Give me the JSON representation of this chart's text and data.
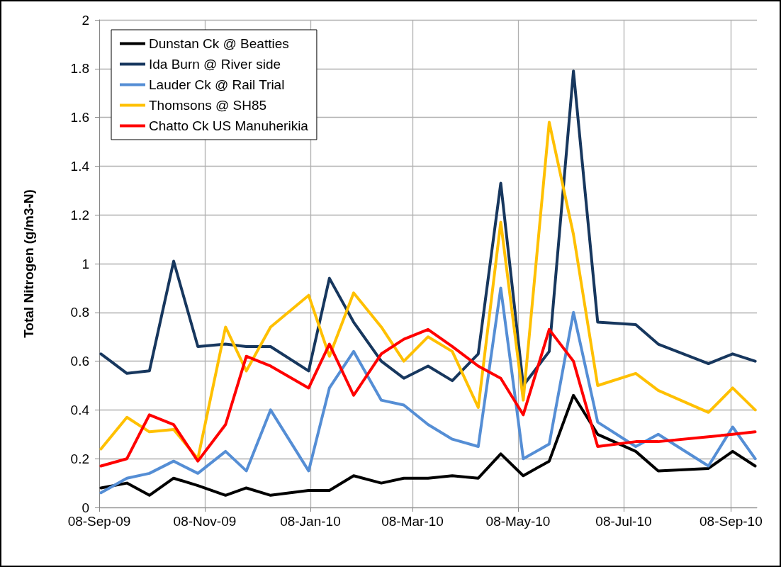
{
  "chart_data": {
    "type": "line",
    "ylabel": "Total Nitrogen (g/m3-N)",
    "x": [
      "2009-09-09",
      "2009-09-24",
      "2009-10-07",
      "2009-10-21",
      "2009-11-04",
      "2009-11-20",
      "2009-12-02",
      "2009-12-16",
      "2010-01-07",
      "2010-01-19",
      "2010-02-02",
      "2010-02-18",
      "2010-03-03",
      "2010-03-17",
      "2010-03-31",
      "2010-04-15",
      "2010-04-28",
      "2010-05-11",
      "2010-05-26",
      "2010-06-09",
      "2010-06-23",
      "2010-07-15",
      "2010-07-28",
      "2010-08-26",
      "2010-09-09",
      "2010-09-22"
    ],
    "series": [
      {
        "name": "Dunstan Ck @ Beatties",
        "color": "#000000",
        "values": [
          0.08,
          0.1,
          0.05,
          0.12,
          0.09,
          0.05,
          0.08,
          0.05,
          0.07,
          0.07,
          0.13,
          0.1,
          0.12,
          0.12,
          0.13,
          0.12,
          0.22,
          0.13,
          0.19,
          0.46,
          0.3,
          0.23,
          0.15,
          0.16,
          0.23,
          0.17
        ]
      },
      {
        "name": "Ida Burn @ River side",
        "color": "#17375e",
        "values": [
          0.63,
          0.55,
          0.56,
          1.01,
          0.66,
          0.67,
          0.66,
          0.66,
          0.56,
          0.94,
          0.76,
          0.6,
          0.53,
          0.58,
          0.52,
          0.63,
          1.33,
          0.5,
          0.64,
          1.79,
          0.76,
          0.75,
          0.67,
          0.59,
          0.63,
          0.6
        ]
      },
      {
        "name": "Lauder Ck @ Rail Trial",
        "color": "#558ed5",
        "values": [
          0.06,
          0.12,
          0.14,
          0.19,
          0.14,
          0.23,
          0.15,
          0.4,
          0.15,
          0.49,
          0.64,
          0.44,
          0.42,
          0.34,
          0.28,
          0.25,
          0.9,
          0.2,
          0.26,
          0.8,
          0.35,
          0.25,
          0.3,
          0.17,
          0.33,
          0.2
        ]
      },
      {
        "name": "Thomsons @ SH85",
        "color": "#ffc000",
        "values": [
          0.24,
          0.37,
          0.31,
          0.32,
          0.2,
          0.74,
          0.56,
          0.74,
          0.87,
          0.62,
          0.88,
          0.74,
          0.6,
          0.7,
          0.64,
          0.41,
          1.17,
          0.44,
          1.58,
          1.12,
          0.5,
          0.55,
          0.48,
          0.39,
          0.49,
          0.4
        ]
      },
      {
        "name": "Chatto Ck US Manuherikia",
        "color": "#ff0000",
        "values": [
          0.17,
          0.2,
          0.38,
          0.34,
          0.19,
          0.34,
          0.62,
          0.58,
          0.49,
          0.67,
          0.46,
          0.63,
          0.69,
          0.73,
          0.66,
          0.58,
          0.53,
          0.38,
          0.73,
          0.6,
          0.25,
          0.27,
          0.27,
          0.29,
          0.3,
          0.31
        ]
      }
    ],
    "xlim": [
      "2009-09-08",
      "2010-09-23"
    ],
    "xticks": [
      {
        "value": "2009-09-08",
        "label": "08-Sep-09"
      },
      {
        "value": "2009-11-08",
        "label": "08-Nov-09"
      },
      {
        "value": "2010-01-08",
        "label": "08-Jan-10"
      },
      {
        "value": "2010-03-08",
        "label": "08-Mar-10"
      },
      {
        "value": "2010-05-08",
        "label": "08-May-10"
      },
      {
        "value": "2010-07-08",
        "label": "08-Jul-10"
      },
      {
        "value": "2010-09-08",
        "label": "08-Sep-10"
      }
    ],
    "ylim": [
      0,
      2
    ],
    "yticks": [
      0,
      0.2,
      0.4,
      0.6,
      0.8,
      1,
      1.2,
      1.4,
      1.6,
      1.8,
      2
    ],
    "grid": true,
    "legend": "top left",
    "marker": "none",
    "line_style": "solid"
  }
}
